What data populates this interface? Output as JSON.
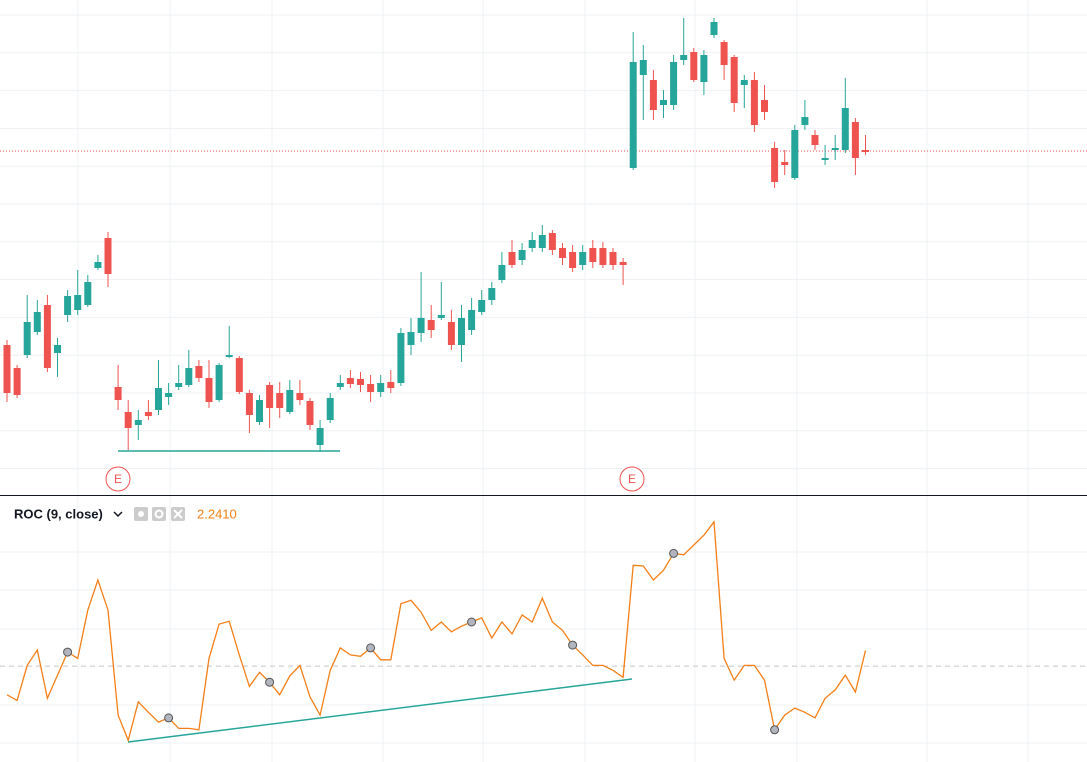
{
  "chart_data": {
    "type": "candlestick",
    "up_color": "#26a69a",
    "down_color": "#ef5350",
    "ylim": [
      5,
      500
    ],
    "open": [
      155,
      132,
      145,
      168,
      195,
      147,
      185,
      190,
      195,
      232,
      262,
      113,
      88,
      75,
      88,
      90,
      103,
      113,
      115,
      134,
      122,
      100,
      143,
      142,
      107,
      78,
      115,
      107,
      88,
      107,
      99,
      55,
      80,
      113,
      122,
      121,
      116,
      108,
      118,
      117,
      155,
      167,
      180,
      182,
      178,
      155,
      170,
      188,
      200,
      220,
      248,
      240,
      252,
      252,
      267,
      252,
      248,
      235,
      252,
      252,
      248,
      238,
      332,
      425,
      420,
      395,
      395,
      440,
      448,
      418,
      465,
      458,
      443,
      415,
      420,
      400,
      352,
      338,
      322,
      375,
      365,
      340,
      350,
      350,
      378,
      350
    ],
    "high": [
      160,
      135,
      205,
      200,
      205,
      162,
      210,
      230,
      225,
      245,
      268,
      135,
      100,
      90,
      100,
      140,
      117,
      135,
      150,
      140,
      140,
      137,
      174,
      144,
      110,
      105,
      118,
      118,
      120,
      120,
      102,
      80,
      107,
      125,
      130,
      128,
      125,
      125,
      130,
      172,
      182,
      228,
      195,
      218,
      190,
      195,
      202,
      210,
      218,
      248,
      260,
      257,
      268,
      275,
      270,
      257,
      255,
      255,
      260,
      258,
      252,
      242,
      468,
      455,
      430,
      410,
      445,
      482,
      452,
      450,
      482,
      460,
      445,
      425,
      428,
      415,
      358,
      350,
      375,
      400,
      370,
      355,
      365,
      422,
      382,
      365
    ],
    "low": [
      98,
      102,
      142,
      165,
      128,
      123,
      178,
      185,
      193,
      230,
      213,
      90,
      50,
      60,
      80,
      85,
      95,
      110,
      113,
      118,
      92,
      98,
      142,
      106,
      67,
      75,
      72,
      82,
      86,
      95,
      70,
      48,
      77,
      110,
      112,
      108,
      98,
      103,
      107,
      114,
      145,
      158,
      162,
      180,
      150,
      138,
      165,
      185,
      195,
      217,
      232,
      235,
      248,
      248,
      245,
      235,
      228,
      230,
      232,
      232,
      230,
      215,
      330,
      380,
      380,
      382,
      390,
      435,
      418,
      405,
      462,
      420,
      388,
      392,
      368,
      380,
      312,
      325,
      320,
      370,
      350,
      335,
      340,
      347,
      325,
      345
    ],
    "close": [
      107,
      105,
      178,
      188,
      132,
      155,
      204,
      205,
      218,
      238,
      226,
      100,
      72,
      80,
      84,
      112,
      107,
      117,
      132,
      122,
      98,
      135,
      145,
      108,
      85,
      100,
      92,
      92,
      110,
      100,
      75,
      72,
      102,
      117,
      116,
      115,
      108,
      117,
      112,
      167,
      168,
      182,
      170,
      185,
      155,
      182,
      190,
      200,
      212,
      235,
      235,
      250,
      260,
      265,
      250,
      242,
      232,
      248,
      238,
      235,
      235,
      235,
      438,
      440,
      390,
      400,
      438,
      445,
      420,
      445,
      478,
      435,
      397,
      420,
      375,
      388,
      318,
      335,
      370,
      383,
      355,
      342,
      352,
      392,
      342,
      348
    ],
    "last_price": 349,
    "last_price_color": "#ef5350",
    "events": [
      {
        "label": "E"
      },
      {
        "label": "E"
      }
    ],
    "indicator": {
      "title": "ROC (9, close)",
      "color": "#f57f17",
      "current": {
        "value": 2.241,
        "label": "2.2410"
      },
      "ylim": [
        -13.7,
        24.3
      ],
      "values": [
        -4.1,
        -4.9,
        0.1,
        2.3,
        -4.6,
        -1.3,
        2.0,
        1.1,
        8.0,
        12.3,
        8.0,
        -7.0,
        -10.6,
        -5.1,
        -6.6,
        -8.0,
        -7.4,
        -8.9,
        -8.9,
        -9.1,
        1.1,
        6.0,
        6.4,
        1.6,
        -2.9,
        -0.9,
        -2.3,
        -4.1,
        -1.4,
        0.1,
        -4.4,
        -7.0,
        -0.6,
        2.6,
        1.6,
        1.4,
        2.6,
        0.9,
        0.9,
        8.9,
        9.4,
        7.7,
        5.1,
        6.3,
        4.9,
        5.7,
        6.3,
        6.9,
        4.0,
        6.3,
        4.6,
        7.3,
        6.3,
        9.7,
        6.3,
        5.1,
        3.0,
        1.6,
        0.1,
        0.1,
        -0.6,
        -1.6,
        14.4,
        14.3,
        12.3,
        13.7,
        16.1,
        15.9,
        17.3,
        18.7,
        20.6,
        1.1,
        -2.0,
        0.1,
        0.1,
        -2.0,
        -9.1,
        -7.0,
        -6.0,
        -6.6,
        -7.4,
        -4.6,
        -3.4,
        -1.3,
        -3.7,
        2.24
      ],
      "markers": [
        6,
        16,
        26,
        36,
        46,
        56,
        66,
        76
      ]
    }
  }
}
